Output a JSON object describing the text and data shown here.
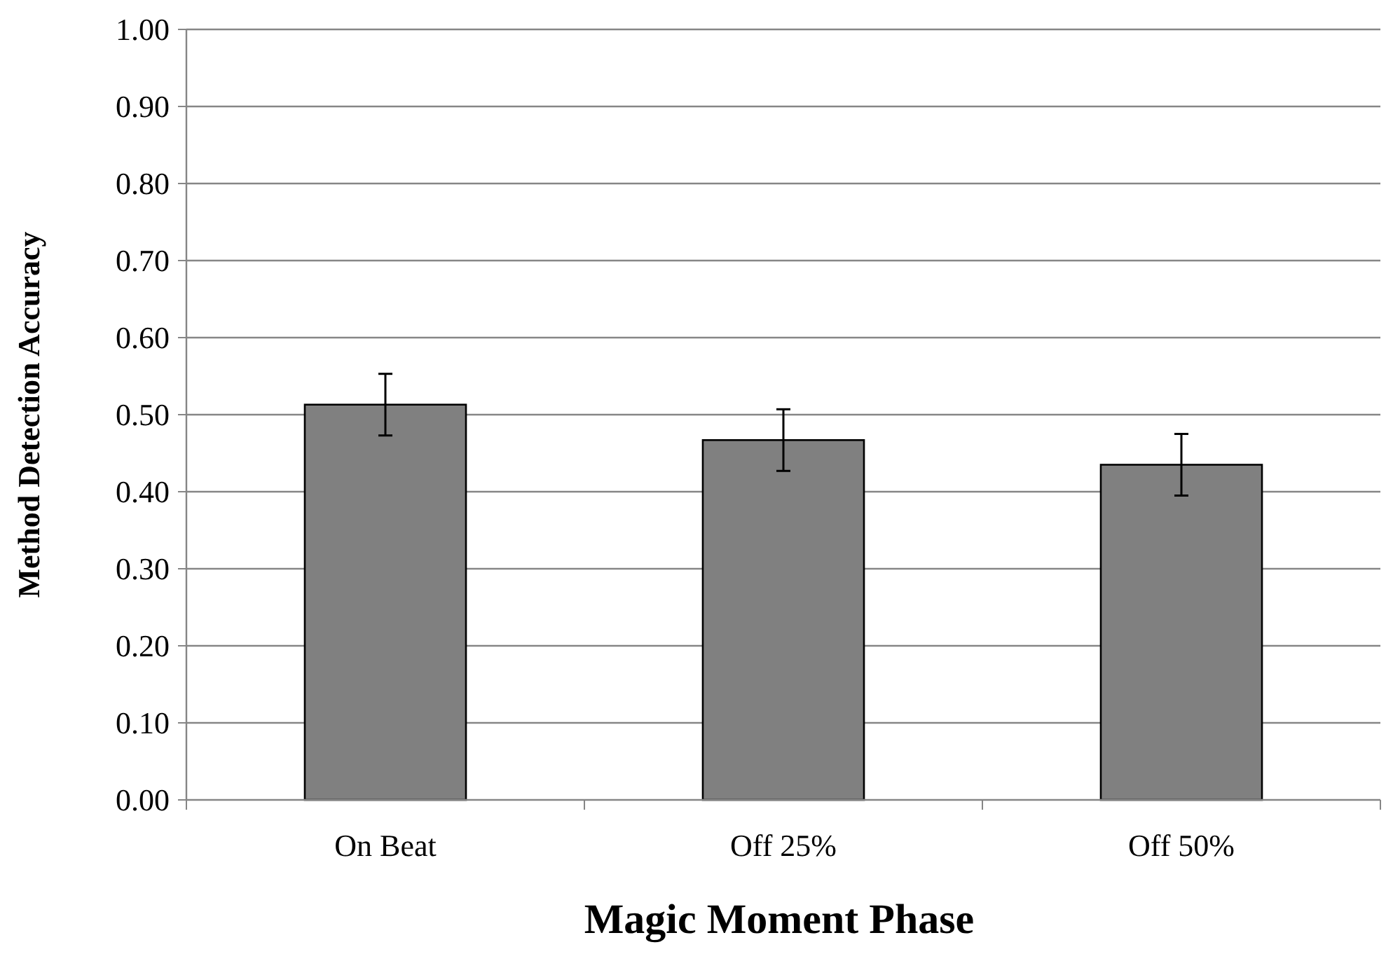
{
  "chart_data": {
    "type": "bar",
    "xlabel": "Magic Moment Phase",
    "ylabel": "Method Detection Accuracy",
    "categories": [
      "On Beat",
      "Off 25%",
      "Off 50%"
    ],
    "values": [
      0.513,
      0.467,
      0.435
    ],
    "errors": [
      0.04,
      0.04,
      0.04
    ],
    "color": "#808080",
    "ylim": [
      0,
      1
    ],
    "yticks": [
      {
        "value": 0,
        "label": "0.00"
      },
      {
        "value": 0.1,
        "label": "0.10"
      },
      {
        "value": 0.2,
        "label": "0.20"
      },
      {
        "value": 0.3,
        "label": "0.30"
      },
      {
        "value": 0.4,
        "label": "0.40"
      },
      {
        "value": 0.5,
        "label": "0.50"
      },
      {
        "value": 0.6,
        "label": "0.60"
      },
      {
        "value": 0.7,
        "label": "0.70"
      },
      {
        "value": 0.8,
        "label": "0.80"
      },
      {
        "value": 0.9,
        "label": "0.90"
      },
      {
        "value": 1,
        "label": "1.00"
      }
    ],
    "grid": "y"
  }
}
